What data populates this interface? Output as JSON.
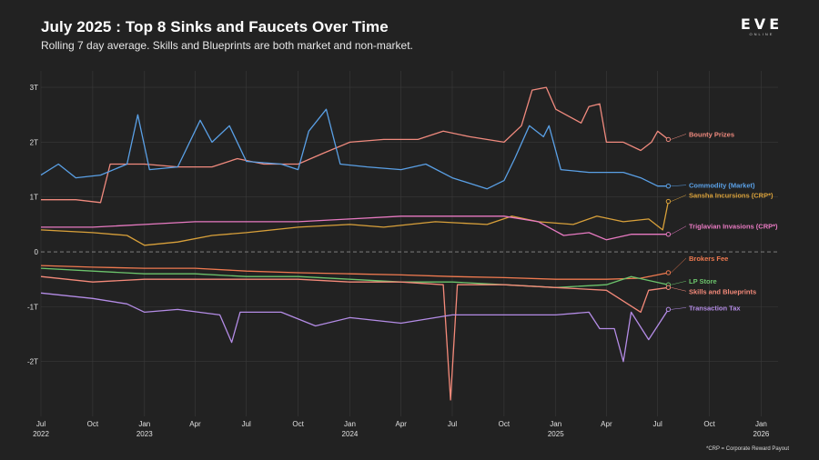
{
  "header": {
    "title": "July 2025 : Top 8 Sinks and Faucets Over Time",
    "subtitle": "Rolling 7 day average. Skills and Blueprints are both market and non-market."
  },
  "logo": {
    "main": "EVE",
    "sub": "ONLINE"
  },
  "footnote": "*CRP = Corporate Reward Payout",
  "chart_data": {
    "type": "line",
    "title": "July 2025 : Top 8 Sinks and Faucets Over Time",
    "subtitle": "Rolling 7 day average. Skills and Blueprints are both market and non-market.",
    "xlabel": "",
    "ylabel": "",
    "x_range": [
      "2022-07-01",
      "2026-01-31"
    ],
    "ylim": [
      -3.0,
      3.3
    ],
    "y_ticks": [
      3,
      2,
      1,
      0,
      -1,
      -2
    ],
    "y_tick_labels": [
      "3T",
      "2T",
      "1T",
      "0",
      "-1T",
      "-2T"
    ],
    "x_ticks": [
      "2022-07-01",
      "2022-10-01",
      "2023-01-01",
      "2023-04-01",
      "2023-07-01",
      "2023-10-01",
      "2024-01-01",
      "2024-04-01",
      "2024-07-01",
      "2024-10-01",
      "2025-01-01",
      "2025-04-01",
      "2025-07-01",
      "2025-10-01",
      "2026-01-01"
    ],
    "x_tick_labels": [
      {
        "month": "Jul",
        "year": "2022"
      },
      {
        "month": "Oct",
        "year": ""
      },
      {
        "month": "Jan",
        "year": "2023"
      },
      {
        "month": "Apr",
        "year": ""
      },
      {
        "month": "Jul",
        "year": ""
      },
      {
        "month": "Oct",
        "year": ""
      },
      {
        "month": "Jan",
        "year": "2024"
      },
      {
        "month": "Apr",
        "year": ""
      },
      {
        "month": "Jul",
        "year": ""
      },
      {
        "month": "Oct",
        "year": ""
      },
      {
        "month": "Jan",
        "year": "2025"
      },
      {
        "month": "Apr",
        "year": ""
      },
      {
        "month": "Jul",
        "year": ""
      },
      {
        "month": "Oct",
        "year": ""
      },
      {
        "month": "Jan",
        "year": "2026"
      }
    ],
    "grid": true,
    "zero_line": "dashed",
    "legend": "direct labels at right end of each series",
    "series": [
      {
        "name": "Bounty Prizes",
        "color": "#f08a7e",
        "points": [
          [
            "2022-07-01",
            0.95
          ],
          [
            "2022-09-01",
            0.95
          ],
          [
            "2022-10-15",
            0.9
          ],
          [
            "2022-11-01",
            1.6
          ],
          [
            "2023-01-01",
            1.6
          ],
          [
            "2023-03-01",
            1.55
          ],
          [
            "2023-05-01",
            1.55
          ],
          [
            "2023-06-15",
            1.7
          ],
          [
            "2023-08-01",
            1.6
          ],
          [
            "2023-10-01",
            1.6
          ],
          [
            "2023-11-15",
            1.8
          ],
          [
            "2024-01-01",
            2.0
          ],
          [
            "2024-03-01",
            2.05
          ],
          [
            "2024-05-01",
            2.05
          ],
          [
            "2024-06-15",
            2.2
          ],
          [
            "2024-08-01",
            2.1
          ],
          [
            "2024-10-01",
            2.0
          ],
          [
            "2024-11-01",
            2.3
          ],
          [
            "2024-11-20",
            2.95
          ],
          [
            "2024-12-15",
            3.0
          ],
          [
            "2025-01-01",
            2.6
          ],
          [
            "2025-02-15",
            2.35
          ],
          [
            "2025-03-01",
            2.65
          ],
          [
            "2025-03-20",
            2.7
          ],
          [
            "2025-04-01",
            2.0
          ],
          [
            "2025-05-01",
            2.0
          ],
          [
            "2025-06-01",
            1.85
          ],
          [
            "2025-06-20",
            2.0
          ],
          [
            "2025-07-01",
            2.2
          ],
          [
            "2025-07-20",
            2.05
          ]
        ]
      },
      {
        "name": "Commodity (Market)",
        "color": "#5aa0e6",
        "points": [
          [
            "2022-07-01",
            1.4
          ],
          [
            "2022-08-01",
            1.6
          ],
          [
            "2022-09-01",
            1.35
          ],
          [
            "2022-10-15",
            1.4
          ],
          [
            "2022-12-01",
            1.6
          ],
          [
            "2022-12-20",
            2.5
          ],
          [
            "2023-01-10",
            1.5
          ],
          [
            "2023-03-01",
            1.55
          ],
          [
            "2023-04-10",
            2.4
          ],
          [
            "2023-05-01",
            2.0
          ],
          [
            "2023-06-01",
            2.3
          ],
          [
            "2023-07-01",
            1.65
          ],
          [
            "2023-09-01",
            1.6
          ],
          [
            "2023-10-01",
            1.5
          ],
          [
            "2023-10-20",
            2.2
          ],
          [
            "2023-11-20",
            2.6
          ],
          [
            "2023-12-15",
            1.6
          ],
          [
            "2024-02-01",
            1.55
          ],
          [
            "2024-04-01",
            1.5
          ],
          [
            "2024-05-15",
            1.6
          ],
          [
            "2024-07-01",
            1.35
          ],
          [
            "2024-09-01",
            1.15
          ],
          [
            "2024-10-01",
            1.3
          ],
          [
            "2024-10-20",
            1.7
          ],
          [
            "2024-11-15",
            2.3
          ],
          [
            "2024-12-10",
            2.1
          ],
          [
            "2024-12-20",
            2.3
          ],
          [
            "2025-01-10",
            1.5
          ],
          [
            "2025-03-01",
            1.45
          ],
          [
            "2025-05-01",
            1.45
          ],
          [
            "2025-06-01",
            1.35
          ],
          [
            "2025-07-01",
            1.2
          ],
          [
            "2025-07-20",
            1.2
          ]
        ]
      },
      {
        "name": "Sansha Incursions (CRP*)",
        "color": "#d8a03a",
        "points": [
          [
            "2022-07-01",
            0.4
          ],
          [
            "2022-10-01",
            0.35
          ],
          [
            "2022-12-01",
            0.3
          ],
          [
            "2023-01-01",
            0.12
          ],
          [
            "2023-03-01",
            0.18
          ],
          [
            "2023-05-01",
            0.3
          ],
          [
            "2023-07-01",
            0.35
          ],
          [
            "2023-10-01",
            0.45
          ],
          [
            "2024-01-01",
            0.5
          ],
          [
            "2024-03-01",
            0.45
          ],
          [
            "2024-06-01",
            0.55
          ],
          [
            "2024-09-01",
            0.5
          ],
          [
            "2024-10-15",
            0.65
          ],
          [
            "2024-12-01",
            0.55
          ],
          [
            "2025-02-01",
            0.5
          ],
          [
            "2025-03-15",
            0.65
          ],
          [
            "2025-05-01",
            0.55
          ],
          [
            "2025-06-15",
            0.6
          ],
          [
            "2025-07-10",
            0.4
          ],
          [
            "2025-07-20",
            0.92
          ]
        ]
      },
      {
        "name": "Triglavian Invasions (CRP*)",
        "color": "#e87ac2",
        "points": [
          [
            "2022-07-01",
            0.45
          ],
          [
            "2022-10-01",
            0.45
          ],
          [
            "2023-01-01",
            0.5
          ],
          [
            "2023-04-01",
            0.55
          ],
          [
            "2023-07-01",
            0.55
          ],
          [
            "2023-10-01",
            0.55
          ],
          [
            "2024-01-01",
            0.6
          ],
          [
            "2024-04-01",
            0.65
          ],
          [
            "2024-07-01",
            0.65
          ],
          [
            "2024-10-01",
            0.65
          ],
          [
            "2024-12-01",
            0.55
          ],
          [
            "2025-01-15",
            0.3
          ],
          [
            "2025-03-01",
            0.35
          ],
          [
            "2025-04-01",
            0.22
          ],
          [
            "2025-05-15",
            0.32
          ],
          [
            "2025-07-20",
            0.32
          ]
        ]
      },
      {
        "name": "Brokers Fee",
        "color": "#f07a50",
        "points": [
          [
            "2022-07-01",
            -0.25
          ],
          [
            "2022-10-01",
            -0.28
          ],
          [
            "2023-01-01",
            -0.3
          ],
          [
            "2023-04-01",
            -0.3
          ],
          [
            "2023-07-01",
            -0.35
          ],
          [
            "2023-10-01",
            -0.38
          ],
          [
            "2024-01-01",
            -0.4
          ],
          [
            "2024-04-01",
            -0.42
          ],
          [
            "2024-07-01",
            -0.45
          ],
          [
            "2024-10-01",
            -0.47
          ],
          [
            "2025-01-01",
            -0.5
          ],
          [
            "2025-04-01",
            -0.5
          ],
          [
            "2025-06-01",
            -0.48
          ],
          [
            "2025-07-20",
            -0.38
          ]
        ]
      },
      {
        "name": "LP Store",
        "color": "#6cc46c",
        "points": [
          [
            "2022-07-01",
            -0.3
          ],
          [
            "2022-10-01",
            -0.35
          ],
          [
            "2023-01-01",
            -0.4
          ],
          [
            "2023-04-01",
            -0.4
          ],
          [
            "2023-07-01",
            -0.45
          ],
          [
            "2023-10-01",
            -0.45
          ],
          [
            "2024-01-01",
            -0.5
          ],
          [
            "2024-04-01",
            -0.55
          ],
          [
            "2024-07-01",
            -0.55
          ],
          [
            "2024-10-01",
            -0.6
          ],
          [
            "2025-01-01",
            -0.65
          ],
          [
            "2025-04-01",
            -0.6
          ],
          [
            "2025-05-15",
            -0.45
          ],
          [
            "2025-07-20",
            -0.6
          ]
        ]
      },
      {
        "name": "Skills and Blueprints",
        "color": "#f58a7a",
        "points": [
          [
            "2022-07-01",
            -0.45
          ],
          [
            "2022-10-01",
            -0.55
          ],
          [
            "2023-01-01",
            -0.5
          ],
          [
            "2023-04-01",
            -0.5
          ],
          [
            "2023-07-01",
            -0.5
          ],
          [
            "2023-10-01",
            -0.5
          ],
          [
            "2024-01-01",
            -0.55
          ],
          [
            "2024-04-01",
            -0.55
          ],
          [
            "2024-06-15",
            -0.6
          ],
          [
            "2024-06-28",
            -2.7
          ],
          [
            "2024-07-10",
            -0.6
          ],
          [
            "2024-10-01",
            -0.6
          ],
          [
            "2025-01-01",
            -0.65
          ],
          [
            "2025-04-01",
            -0.7
          ],
          [
            "2025-06-01",
            -1.1
          ],
          [
            "2025-06-15",
            -0.7
          ],
          [
            "2025-07-20",
            -0.65
          ]
        ]
      },
      {
        "name": "Transaction Tax",
        "color": "#b48ce6",
        "points": [
          [
            "2022-07-01",
            -0.75
          ],
          [
            "2022-10-01",
            -0.85
          ],
          [
            "2022-12-01",
            -0.95
          ],
          [
            "2023-01-01",
            -1.1
          ],
          [
            "2023-03-01",
            -1.05
          ],
          [
            "2023-05-15",
            -1.15
          ],
          [
            "2023-06-05",
            -1.65
          ],
          [
            "2023-06-20",
            -1.1
          ],
          [
            "2023-09-01",
            -1.1
          ],
          [
            "2023-11-01",
            -1.35
          ],
          [
            "2024-01-01",
            -1.2
          ],
          [
            "2024-04-01",
            -1.3
          ],
          [
            "2024-07-01",
            -1.15
          ],
          [
            "2024-10-01",
            -1.15
          ],
          [
            "2025-01-01",
            -1.15
          ],
          [
            "2025-03-01",
            -1.1
          ],
          [
            "2025-03-20",
            -1.4
          ],
          [
            "2025-04-15",
            -1.4
          ],
          [
            "2025-05-01",
            -2.0
          ],
          [
            "2025-05-15",
            -1.1
          ],
          [
            "2025-06-15",
            -1.6
          ],
          [
            "2025-07-20",
            -1.05
          ]
        ]
      }
    ]
  }
}
